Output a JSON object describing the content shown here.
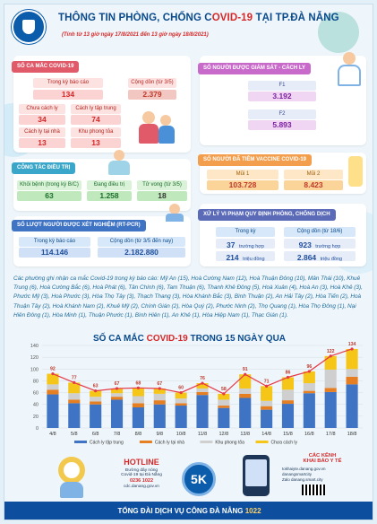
{
  "header": {
    "title_pre": "THÔNG TIN PHÒNG, CHỐNG C",
    "title_covid": "OVID-19",
    "title_post": " TẠI TP.ĐÀ NẴNG",
    "subtitle": "(Tính từ 13 giờ ngày 17/8/2021 đến 13 giờ ngày 18/8/2021)"
  },
  "cases": {
    "tag": "SỐ CA MẮC COVID-19",
    "in_period_label": "Trong kỳ báo cáo",
    "in_period_value": "134",
    "cumulative_label": "Cộng dồn (từ 3/5)",
    "cumulative_value": "2.379",
    "isolated_label": "Chưa cách ly",
    "isolated_value": "34",
    "concentrated_label": "Cách ly tập trung",
    "concentrated_value": "74",
    "home_label": "Cách ly tại nhà",
    "home_value": "13",
    "blockade_label": "Khu phong tỏa",
    "blockade_value": "13"
  },
  "monitoring": {
    "tag": "SỐ NGƯỜI ĐƯỢC GIÁM SÁT - CÁCH LY",
    "f1_label": "F1",
    "f1_value": "3.192",
    "f2_label": "F2",
    "f2_value": "5.893"
  },
  "treatment": {
    "tag": "CÔNG TÁC ĐIỀU TRỊ",
    "recovered_label": "Khỏi bệnh (trong kỳ B/C)",
    "recovered_value": "63",
    "treating_label": "Đang điều trị",
    "treating_value": "1.258",
    "deaths_label": "Tử vong (từ 3/5)",
    "deaths_value": "18"
  },
  "vaccine": {
    "tag": "SỐ NGƯỜI ĐÃ TIÊM VACCINE COVID-19",
    "dose1_label": "Mũi 1",
    "dose1_value": "103.728",
    "dose2_label": "Mũi 2",
    "dose2_value": "8.423"
  },
  "testing": {
    "tag": "SỐ LƯỢT NGƯỜI ĐƯỢC XÉT NGHIỆM (RT-PCR)",
    "period_label": "Trong kỳ báo cáo",
    "period_value": "114.146",
    "cumulative_label": "Cộng dồn (từ 3/5 đến nay)",
    "cumulative_value": "2.182.880"
  },
  "violations": {
    "tag": "XỬ LÝ VI PHẠM QUY ĐỊNH PHÒNG, CHỐNG DỊCH",
    "period_label": "Trong kỳ",
    "cumulative_label": "Cộng dồn (từ 18/6)",
    "period_cases": "37",
    "period_cases_unit": "trường hợp",
    "cumulative_cases": "923",
    "cumulative_cases_unit": "trường hợp",
    "period_money": "214",
    "period_money_unit": "triệu đồng",
    "cumulative_money": "2.864",
    "cumulative_money_unit": "triệu đồng"
  },
  "wards_text": "Các phường ghi nhận ca mắc Covid-19 trong kỳ báo cáo: Mỹ An (15), Hoà Cường Nam (12), Hoà Thuận Đông (10), Mân Thái (10), Khuê Trung (6), Hoà Cường Bắc (6), Hoà Phát (6), Tân Chính (6), Tam Thuận (6), Thanh Khê Đông (5), Hoà Xuân (4), Hoà An (3), Hoà Khê (3), Phước Mỹ (3), Hoà Phước (3), Hòa Thọ Tây (3), Thạch Thang (3), Hòa Khánh Bắc (3), Bình Thuận (2), An Hải Tây (2), Hòa Tiến (2), Hoà Thuận Tây (2), Hoà Khánh Nam (2), Khuê Mỹ (2), Chính Gián (2), Hòa Quý (2), Phước Ninh (2), Thọ Quang (1), Hòa Thọ Đông (1), Nại Hiên Đông (1), Hòa Minh (1), Thuận Phước (1), Bình Hiên (1), An Khê (1), Hòa Hiệp Nam (1), Thạc Gián (1).",
  "chart_data": {
    "type": "bar",
    "title": "SỐ CA MẮC COVID-19 TRONG 15 NGÀY QUA",
    "categories": [
      "4/8",
      "5/8",
      "6/8",
      "7/8",
      "8/8",
      "9/8",
      "10/8",
      "11/8",
      "12/8",
      "13/8",
      "14/8",
      "15/8",
      "16/8",
      "17/8",
      "18/8"
    ],
    "ylim": [
      0,
      140
    ],
    "yticks": [
      0,
      20,
      40,
      60,
      80,
      100,
      120,
      140
    ],
    "totals": [
      92,
      77,
      63,
      67,
      68,
      67,
      60,
      76,
      58,
      91,
      71,
      86,
      96,
      122,
      134
    ],
    "series": [
      {
        "name": "Cách ly tập trung",
        "color": "#3f73c4",
        "values": [
          57,
          42,
          40,
          48,
          35,
          40,
          38,
          56,
          34,
          51,
          31,
          41,
          59,
          61,
          74
        ]
      },
      {
        "name": "Cách ly tại nhà",
        "color": "#e67e22",
        "values": [
          8,
          6,
          5,
          5,
          7,
          7,
          4,
          5,
          4,
          7,
          6,
          6,
          4,
          7,
          13
        ]
      },
      {
        "name": "Khu phong tỏa",
        "color": "#cfcfcf",
        "values": [
          9,
          11,
          8,
          6,
          12,
          11,
          8,
          6,
          10,
          9,
          9,
          18,
          13,
          31,
          13
        ]
      },
      {
        "name": "Chưa cách ly",
        "color": "#f5c518",
        "values": [
          18,
          18,
          10,
          8,
          14,
          9,
          10,
          9,
          10,
          24,
          25,
          21,
          20,
          23,
          34
        ]
      }
    ],
    "line": {
      "name": "Tổng",
      "color": "#e63946"
    }
  },
  "hotline": {
    "title": "HOTLINE",
    "line1": "Đường dây nóng",
    "line2": "Covid-19 tại Đà Nẵng",
    "phone": "0236 1022",
    "web": "cdc.danang.gov.vn"
  },
  "badge5k": "5K",
  "channels": {
    "title1": "CÁC KÊNH",
    "title2": "KHAI BÁO Y TẾ",
    "item1": "tokhaiyte.danang.gov.vn",
    "item2": "danangsmartcity",
    "item3": "Zalo danang.smart.city"
  },
  "footer": {
    "text": "TỔNG ĐÀI DỊCH VỤ CÔNG ĐÀ NẴNG ",
    "number": "1022"
  }
}
